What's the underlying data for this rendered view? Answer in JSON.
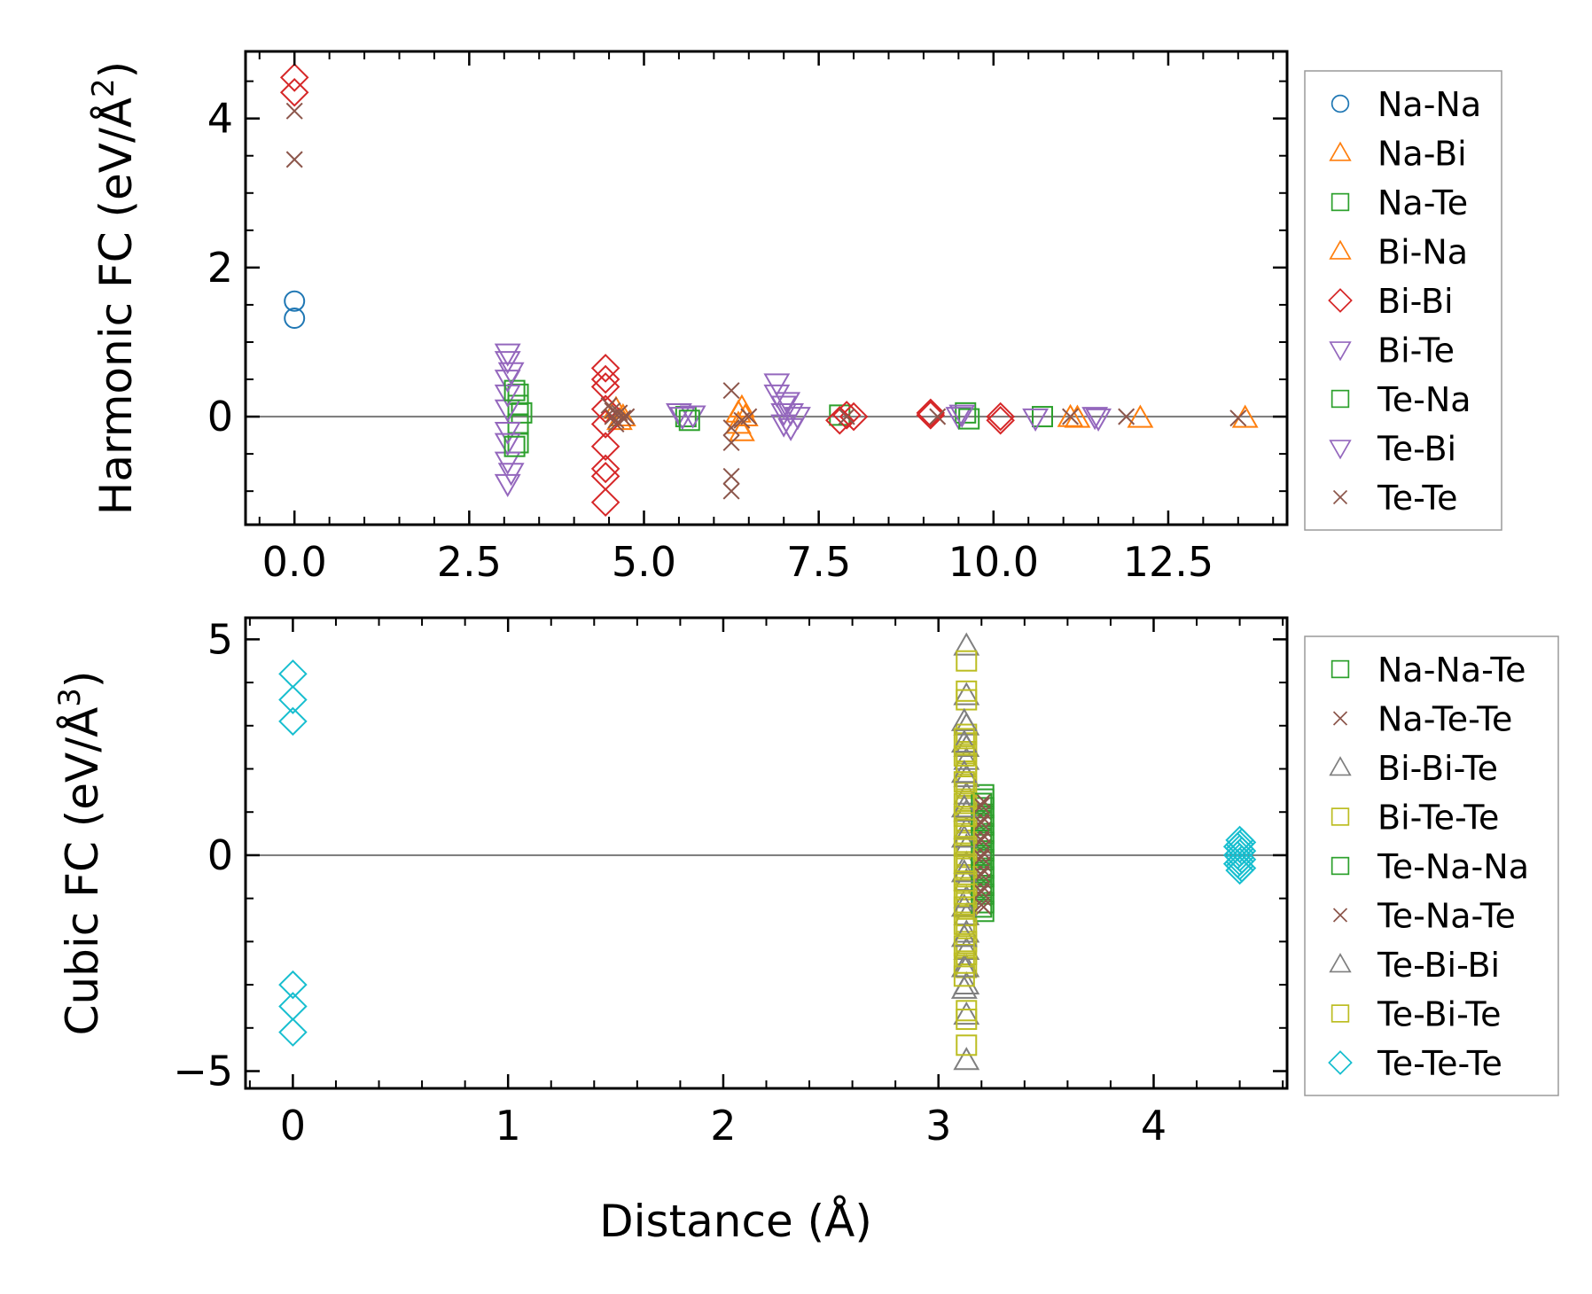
{
  "xlabel": "Distance (Å)",
  "chart_data": [
    {
      "type": "scatter",
      "ylabel": "Harmonic FC (eV/Å",
      "ylabel_exp": "2",
      "ylabel_close": ")",
      "xlim": [
        -0.7,
        14.2
      ],
      "ylim": [
        -1.45,
        4.9
      ],
      "xticks": [
        0.0,
        2.5,
        5.0,
        7.5,
        10.0,
        12.5
      ],
      "xtick_labels": [
        "0.0",
        "2.5",
        "5.0",
        "7.5",
        "10.0",
        "12.5"
      ],
      "yticks": [
        0,
        2,
        4
      ],
      "ytick_labels": [
        "0",
        "2",
        "4"
      ],
      "xminor": 0.5,
      "yminor": 0.5,
      "zero_line": true,
      "legend_position": "right",
      "series": [
        {
          "name": "Na-Na",
          "marker": "circle",
          "color": "#1f77b4",
          "points": [
            [
              0.0,
              1.55
            ],
            [
              0.0,
              1.32
            ]
          ]
        },
        {
          "name": "Na-Bi",
          "marker": "triangle-up",
          "color": "#ff7f0e",
          "points": [
            [
              6.35,
              0.05
            ],
            [
              6.35,
              -0.1
            ],
            [
              6.4,
              -0.2
            ],
            [
              6.4,
              0.12
            ],
            [
              11.2,
              -0.02
            ],
            [
              12.1,
              -0.02
            ],
            [
              13.6,
              -0.02
            ]
          ]
        },
        {
          "name": "Na-Te",
          "marker": "square",
          "color": "#2ca02c",
          "points": [
            [
              3.2,
              0.3
            ],
            [
              3.2,
              0.15
            ],
            [
              3.2,
              -0.1
            ],
            [
              3.2,
              -0.35
            ],
            [
              3.25,
              0.05
            ],
            [
              5.6,
              0.0
            ],
            [
              7.8,
              0.02
            ],
            [
              9.6,
              0.05
            ],
            [
              10.7,
              0.0
            ]
          ]
        },
        {
          "name": "Bi-Na",
          "marker": "triangle-up",
          "color": "#ff7f0e",
          "points": [
            [
              4.6,
              0.1
            ],
            [
              4.65,
              -0.05
            ],
            [
              4.7,
              0.0
            ],
            [
              6.45,
              0.0
            ],
            [
              11.1,
              -0.01
            ]
          ]
        },
        {
          "name": "Bi-Bi",
          "marker": "diamond",
          "color": "#d62728",
          "points": [
            [
              0.0,
              4.55
            ],
            [
              0.0,
              4.35
            ],
            [
              4.45,
              0.65
            ],
            [
              4.45,
              0.5
            ],
            [
              4.45,
              0.4
            ],
            [
              4.45,
              0.1
            ],
            [
              4.45,
              -0.1
            ],
            [
              4.45,
              -0.4
            ],
            [
              4.45,
              -0.7
            ],
            [
              4.45,
              -0.8
            ],
            [
              4.45,
              -1.15
            ],
            [
              7.8,
              -0.05
            ],
            [
              7.9,
              0.02
            ],
            [
              8.0,
              0.0
            ],
            [
              9.1,
              0.05
            ],
            [
              9.1,
              0.02
            ],
            [
              10.1,
              0.0
            ],
            [
              10.1,
              -0.05
            ]
          ]
        },
        {
          "name": "Bi-Te",
          "marker": "triangle-down",
          "color": "#9467bd",
          "points": [
            [
              3.05,
              0.85
            ],
            [
              3.05,
              0.75
            ],
            [
              3.05,
              0.5
            ],
            [
              3.05,
              0.3
            ],
            [
              3.05,
              0.1
            ],
            [
              3.05,
              -0.2
            ],
            [
              3.05,
              -0.35
            ],
            [
              3.05,
              -0.6
            ],
            [
              3.05,
              -0.9
            ],
            [
              5.5,
              0.05
            ],
            [
              5.55,
              0.0
            ],
            [
              5.7,
              0.02
            ],
            [
              6.9,
              0.45
            ],
            [
              6.9,
              0.3
            ],
            [
              7.0,
              0.15
            ],
            [
              7.0,
              0.05
            ],
            [
              7.0,
              -0.1
            ],
            [
              7.1,
              -0.15
            ],
            [
              7.2,
              0.0
            ],
            [
              9.5,
              0.0
            ],
            [
              10.6,
              -0.02
            ],
            [
              11.5,
              -0.02
            ]
          ]
        },
        {
          "name": "Te-Na",
          "marker": "square",
          "color": "#2ca02c",
          "points": [
            [
              3.15,
              -0.4
            ],
            [
              3.15,
              0.35
            ],
            [
              5.65,
              -0.05
            ],
            [
              9.65,
              -0.03
            ]
          ]
        },
        {
          "name": "Te-Bi",
          "marker": "triangle-down",
          "color": "#9467bd",
          "points": [
            [
              3.1,
              0.6
            ],
            [
              3.1,
              -0.75
            ],
            [
              7.05,
              0.2
            ],
            [
              7.1,
              0.05
            ],
            [
              9.55,
              0.03
            ],
            [
              11.45,
              0.0
            ]
          ]
        },
        {
          "name": "Te-Te",
          "marker": "x",
          "color": "#8c564b",
          "points": [
            [
              0.0,
              4.1
            ],
            [
              0.0,
              3.45
            ],
            [
              4.5,
              0.15
            ],
            [
              4.55,
              0.0
            ],
            [
              4.6,
              -0.05
            ],
            [
              4.65,
              0.05
            ],
            [
              4.7,
              -0.02
            ],
            [
              4.75,
              0.0
            ],
            [
              4.6,
              -0.1
            ],
            [
              4.55,
              0.08
            ],
            [
              6.25,
              0.35
            ],
            [
              6.25,
              -0.15
            ],
            [
              6.25,
              -0.35
            ],
            [
              6.25,
              -0.8
            ],
            [
              6.25,
              -1.0
            ],
            [
              6.5,
              0.0
            ],
            [
              6.4,
              -0.05
            ],
            [
              7.9,
              0.0
            ],
            [
              9.2,
              0.0
            ],
            [
              11.1,
              0.0
            ],
            [
              11.9,
              0.0
            ],
            [
              13.5,
              -0.02
            ]
          ]
        }
      ]
    },
    {
      "type": "scatter",
      "ylabel": "Cubic FC (eV/Å",
      "ylabel_exp": "3",
      "ylabel_close": ")",
      "xlim": [
        -0.22,
        4.62
      ],
      "ylim": [
        -5.4,
        5.5
      ],
      "xticks": [
        0,
        1,
        2,
        3,
        4
      ],
      "xtick_labels": [
        "0",
        "1",
        "2",
        "3",
        "4"
      ],
      "yticks": [
        -5,
        0,
        5
      ],
      "ytick_labels": [
        "−5",
        "0",
        "5"
      ],
      "xminor": 0.2,
      "yminor": 1,
      "zero_line": true,
      "legend_position": "right",
      "series": [
        {
          "name": "Na-Na-Te",
          "marker": "square",
          "color": "#2ca02c",
          "points": [
            [
              3.21,
              1.3
            ],
            [
              3.21,
              0.9
            ],
            [
              3.21,
              0.5
            ],
            [
              3.21,
              0.1
            ],
            [
              3.21,
              -0.3
            ],
            [
              3.21,
              -0.7
            ],
            [
              3.21,
              -1.1
            ],
            [
              3.21,
              -1.3
            ],
            [
              3.21,
              1.4
            ],
            [
              3.21,
              1.1
            ],
            [
              3.21,
              0.7
            ],
            [
              3.21,
              0.3
            ],
            [
              3.21,
              -0.1
            ],
            [
              3.21,
              -0.5
            ],
            [
              3.21,
              -0.9
            ]
          ]
        },
        {
          "name": "Na-Te-Te",
          "marker": "x",
          "color": "#8c564b",
          "points": [
            [
              3.21,
              1.25
            ],
            [
              3.21,
              0.85
            ],
            [
              3.21,
              0.45
            ],
            [
              3.21,
              0.05
            ],
            [
              3.21,
              -0.35
            ],
            [
              3.21,
              -0.75
            ],
            [
              3.21,
              -1.2
            ],
            [
              3.21,
              1.0
            ],
            [
              3.21,
              0.6
            ],
            [
              3.21,
              0.2
            ],
            [
              3.21,
              -0.2
            ],
            [
              3.21,
              -0.6
            ],
            [
              3.21,
              -1.0
            ]
          ]
        },
        {
          "name": "Bi-Bi-Te",
          "marker": "triangle-up",
          "color": "#7f7f7f",
          "points": [
            [
              3.13,
              4.85
            ],
            [
              3.13,
              3.7
            ],
            [
              3.13,
              3.0
            ],
            [
              3.13,
              2.5
            ],
            [
              3.13,
              2.2
            ],
            [
              3.13,
              1.8
            ],
            [
              3.13,
              1.4
            ],
            [
              3.13,
              1.0
            ],
            [
              3.13,
              0.6
            ],
            [
              3.13,
              0.2
            ],
            [
              3.13,
              -0.2
            ],
            [
              3.13,
              -0.6
            ],
            [
              3.13,
              -1.0
            ],
            [
              3.13,
              -1.4
            ],
            [
              3.13,
              -1.8
            ],
            [
              3.13,
              -2.2
            ],
            [
              3.13,
              -2.6
            ],
            [
              3.13,
              -3.0
            ],
            [
              3.13,
              -3.7
            ],
            [
              3.13,
              -4.75
            ]
          ]
        },
        {
          "name": "Bi-Te-Te",
          "marker": "square",
          "color": "#bcbd22",
          "points": [
            [
              3.13,
              4.5
            ],
            [
              3.13,
              3.8
            ],
            [
              3.13,
              3.6
            ],
            [
              3.13,
              2.8
            ],
            [
              3.13,
              2.6
            ],
            [
              3.13,
              2.4
            ],
            [
              3.13,
              2.1
            ],
            [
              3.13,
              1.9
            ],
            [
              3.13,
              1.6
            ],
            [
              3.13,
              1.3
            ],
            [
              3.13,
              1.1
            ],
            [
              3.13,
              0.8
            ],
            [
              3.13,
              0.5
            ],
            [
              3.13,
              0.3
            ],
            [
              3.13,
              0.0
            ],
            [
              3.13,
              -0.3
            ],
            [
              3.13,
              -0.5
            ],
            [
              3.13,
              -0.8
            ],
            [
              3.13,
              -1.1
            ],
            [
              3.13,
              -1.4
            ],
            [
              3.13,
              -1.7
            ],
            [
              3.13,
              -2.0
            ],
            [
              3.13,
              -2.3
            ],
            [
              3.13,
              -2.6
            ],
            [
              3.13,
              -3.6
            ],
            [
              3.13,
              -3.8
            ],
            [
              3.13,
              -4.4
            ]
          ]
        },
        {
          "name": "Te-Na-Na",
          "marker": "square",
          "color": "#2ca02c",
          "points": [
            [
              3.2,
              1.2
            ],
            [
              3.2,
              0.8
            ],
            [
              3.2,
              0.4
            ],
            [
              3.2,
              0.0
            ],
            [
              3.2,
              -0.4
            ],
            [
              3.2,
              -0.8
            ],
            [
              3.2,
              -1.2
            ]
          ]
        },
        {
          "name": "Te-Na-Te",
          "marker": "x",
          "color": "#8c564b",
          "points": [
            [
              3.2,
              1.15
            ],
            [
              3.2,
              0.75
            ],
            [
              3.2,
              0.35
            ],
            [
              3.2,
              -0.05
            ],
            [
              3.2,
              -0.45
            ],
            [
              3.2,
              -0.85
            ],
            [
              3.2,
              -1.15
            ]
          ]
        },
        {
          "name": "Te-Bi-Bi",
          "marker": "triangle-up",
          "color": "#7f7f7f",
          "points": [
            [
              3.12,
              3.1
            ],
            [
              3.12,
              2.6
            ],
            [
              3.12,
              1.9
            ],
            [
              3.12,
              1.1
            ],
            [
              3.12,
              0.4
            ],
            [
              3.12,
              -0.4
            ],
            [
              3.12,
              -1.2
            ],
            [
              3.12,
              -1.9
            ],
            [
              3.12,
              -2.6
            ],
            [
              3.12,
              -3.1
            ]
          ]
        },
        {
          "name": "Te-Bi-Te",
          "marker": "square",
          "color": "#bcbd22",
          "points": [
            [
              3.12,
              2.7
            ],
            [
              3.12,
              2.3
            ],
            [
              3.12,
              1.7
            ],
            [
              3.12,
              1.2
            ],
            [
              3.12,
              0.9
            ],
            [
              3.12,
              0.6
            ],
            [
              3.12,
              0.2
            ],
            [
              3.12,
              -0.2
            ],
            [
              3.12,
              -0.6
            ],
            [
              3.12,
              -0.9
            ],
            [
              3.12,
              -1.2
            ],
            [
              3.12,
              -1.6
            ],
            [
              3.12,
              -2.1
            ],
            [
              3.12,
              -2.5
            ],
            [
              3.12,
              -2.8
            ]
          ]
        },
        {
          "name": "Te-Te-Te",
          "marker": "diamond",
          "color": "#17becf",
          "points": [
            [
              0.0,
              4.2
            ],
            [
              0.0,
              3.6
            ],
            [
              0.0,
              3.1
            ],
            [
              0.0,
              -3.0
            ],
            [
              0.0,
              -3.5
            ],
            [
              0.0,
              -4.1
            ],
            [
              4.4,
              0.35
            ],
            [
              4.4,
              0.25
            ],
            [
              4.4,
              0.15
            ],
            [
              4.4,
              0.05
            ],
            [
              4.4,
              -0.05
            ],
            [
              4.4,
              -0.15
            ],
            [
              4.4,
              -0.25
            ],
            [
              4.4,
              -0.35
            ],
            [
              4.41,
              0.3
            ],
            [
              4.41,
              0.1
            ],
            [
              4.41,
              -0.1
            ],
            [
              4.41,
              -0.3
            ],
            [
              4.39,
              0.2
            ],
            [
              4.39,
              0.0
            ],
            [
              4.39,
              -0.2
            ]
          ]
        }
      ]
    }
  ]
}
